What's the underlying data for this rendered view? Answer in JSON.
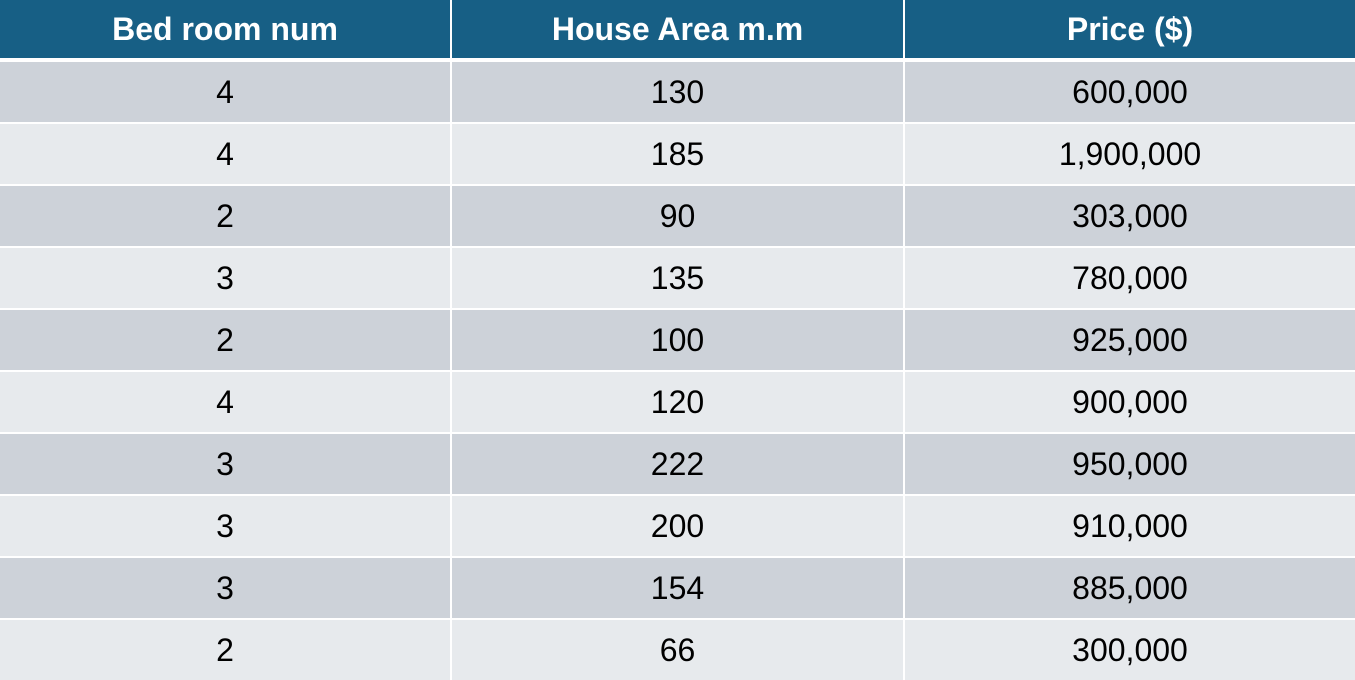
{
  "table": {
    "headers": [
      "Bed room num",
      "House Area m.m",
      "Price ($)"
    ],
    "rows": [
      [
        "4",
        "130",
        "600,000"
      ],
      [
        "4",
        "185",
        "1,900,000"
      ],
      [
        "2",
        "90",
        "303,000"
      ],
      [
        "3",
        "135",
        "780,000"
      ],
      [
        "2",
        "100",
        "925,000"
      ],
      [
        "4",
        "120",
        "900,000"
      ],
      [
        "3",
        "222",
        "950,000"
      ],
      [
        "3",
        "200",
        "910,000"
      ],
      [
        "3",
        "154",
        "885,000"
      ],
      [
        "2",
        "66",
        "300,000"
      ]
    ]
  },
  "colors": {
    "header_bg": "#175f85",
    "header_text": "#ffffff",
    "row_dark": "#cdd2d9",
    "row_light": "#e7eaed"
  }
}
